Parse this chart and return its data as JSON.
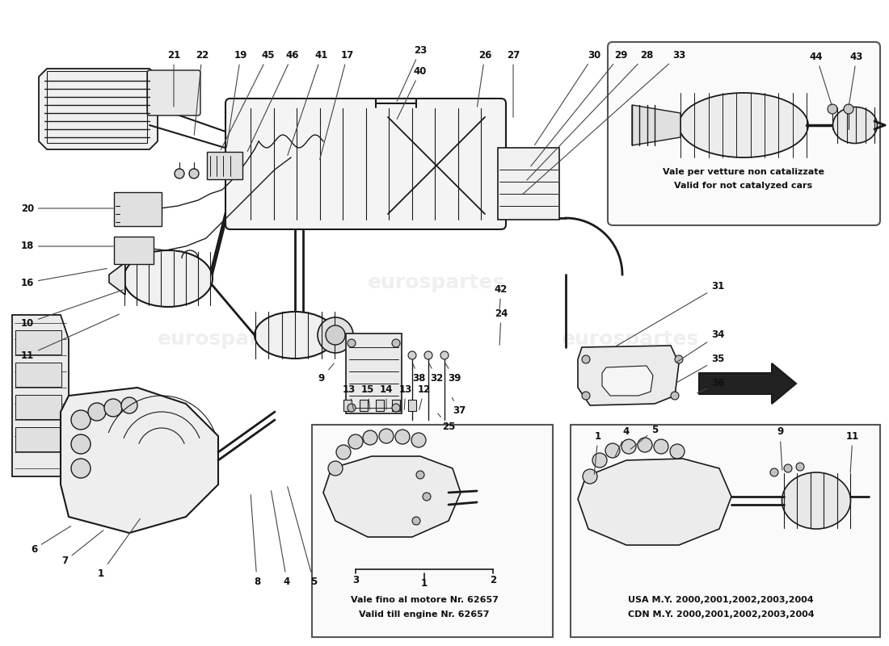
{
  "background_color": "#ffffff",
  "line_color": "#1a1a1a",
  "label_color": "#111111",
  "fs_label": 8.5,
  "fs_note": 8.0,
  "watermark": "eurospartes",
  "wm_color": "#c8c8c8",
  "box3_text1": "Vale per vetture non catalizzate",
  "box3_text2": "Valid for not catalyzed cars",
  "box1_text1": "Vale fino al motore Nr. 62657",
  "box1_text2": "Valid till engine Nr. 62657",
  "box2_text1": "USA M.Y. 2000,2001,2002,2003,2004",
  "box2_text2": "CDN M.Y. 2000,2001,2002,2003,2004"
}
